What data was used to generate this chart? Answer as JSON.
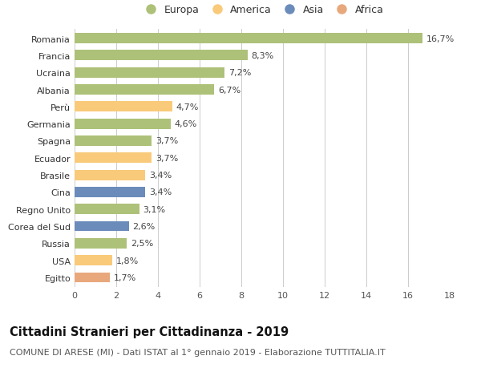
{
  "categories": [
    "Romania",
    "Francia",
    "Ucraina",
    "Albania",
    "Perù",
    "Germania",
    "Spagna",
    "Ecuador",
    "Brasile",
    "Cina",
    "Regno Unito",
    "Corea del Sud",
    "Russia",
    "USA",
    "Egitto"
  ],
  "values": [
    16.7,
    8.3,
    7.2,
    6.7,
    4.7,
    4.6,
    3.7,
    3.7,
    3.4,
    3.4,
    3.1,
    2.6,
    2.5,
    1.8,
    1.7
  ],
  "labels": [
    "16,7%",
    "8,3%",
    "7,2%",
    "6,7%",
    "4,7%",
    "4,6%",
    "3,7%",
    "3,7%",
    "3,4%",
    "3,4%",
    "3,1%",
    "2,6%",
    "2,5%",
    "1,8%",
    "1,7%"
  ],
  "continents": [
    "Europa",
    "Europa",
    "Europa",
    "Europa",
    "America",
    "Europa",
    "Europa",
    "America",
    "America",
    "Asia",
    "Europa",
    "Asia",
    "Europa",
    "America",
    "Africa"
  ],
  "continent_colors": {
    "Europa": "#adc178",
    "America": "#f9ca7a",
    "Asia": "#6b8cba",
    "Africa": "#e8a87c"
  },
  "legend_order": [
    "Europa",
    "America",
    "Asia",
    "Africa"
  ],
  "xlim": [
    0,
    18
  ],
  "xticks": [
    0,
    2,
    4,
    6,
    8,
    10,
    12,
    14,
    16,
    18
  ],
  "title": "Cittadini Stranieri per Cittadinanza - 2019",
  "subtitle": "COMUNE DI ARESE (MI) - Dati ISTAT al 1° gennaio 2019 - Elaborazione TUTTITALIA.IT",
  "title_fontsize": 10.5,
  "subtitle_fontsize": 8,
  "bar_height": 0.6,
  "background_color": "#ffffff",
  "grid_color": "#cccccc",
  "label_fontsize": 8,
  "ytick_fontsize": 8,
  "xtick_fontsize": 8
}
